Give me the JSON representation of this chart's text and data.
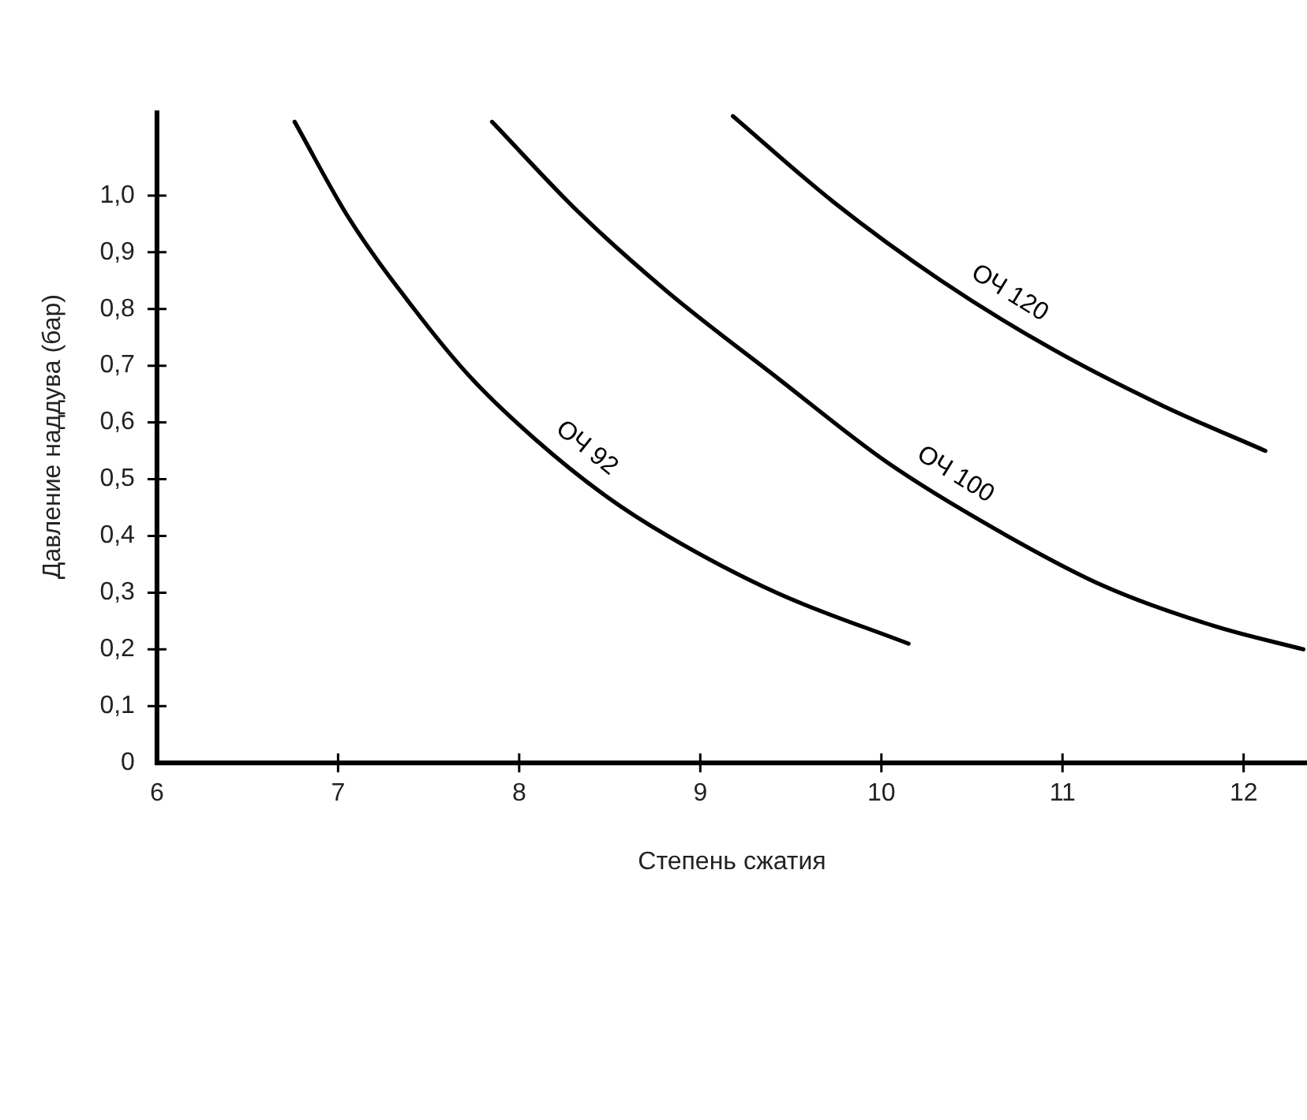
{
  "chart_data": {
    "type": "line",
    "xlabel": "Степень сжатия",
    "ylabel": "Давление наддува (бар)",
    "xlim": [
      6,
      12.35
    ],
    "xticks": [
      6,
      7,
      8,
      9,
      10,
      11,
      12
    ],
    "ylim": [
      0,
      1.15
    ],
    "yticks": [
      0,
      {
        "value": 0.1,
        "label": "0,1"
      },
      {
        "value": 0.2,
        "label": "0,2"
      },
      {
        "value": 0.3,
        "label": "0,3"
      },
      {
        "value": 0.4,
        "label": "0,4"
      },
      {
        "value": 0.5,
        "label": "0,5"
      },
      {
        "value": 0.6,
        "label": "0,6"
      },
      {
        "value": 0.7,
        "label": "0,7"
      },
      {
        "value": 0.8,
        "label": "0,8"
      },
      {
        "value": 0.9,
        "label": "0,9"
      },
      {
        "value": 1.0,
        "label": "1,0"
      }
    ],
    "grid": false,
    "legend": false,
    "marker": "none",
    "line_style": "solid",
    "series": [
      {
        "name": "ОЧ 92",
        "color": "#000000",
        "x": [
          6.76,
          7.06,
          7.42,
          7.73,
          8.09,
          8.48,
          8.82,
          9.42,
          10.15
        ],
        "values": [
          1.13,
          0.96,
          0.8,
          0.68,
          0.57,
          0.47,
          0.4,
          0.3,
          0.21
        ]
      },
      {
        "name": "ОЧ 100",
        "color": "#000000",
        "x": [
          7.85,
          8.33,
          8.82,
          9.42,
          10.03,
          10.64,
          11.24,
          11.85,
          12.33
        ],
        "values": [
          1.13,
          0.97,
          0.83,
          0.68,
          0.53,
          0.41,
          0.31,
          0.24,
          0.2
        ]
      },
      {
        "name": "ОЧ 120",
        "color": "#000000",
        "x": [
          9.18,
          9.73,
          10.33,
          10.94,
          11.55,
          12.12
        ],
        "values": [
          1.14,
          0.99,
          0.85,
          0.73,
          0.63,
          0.55
        ]
      }
    ]
  }
}
